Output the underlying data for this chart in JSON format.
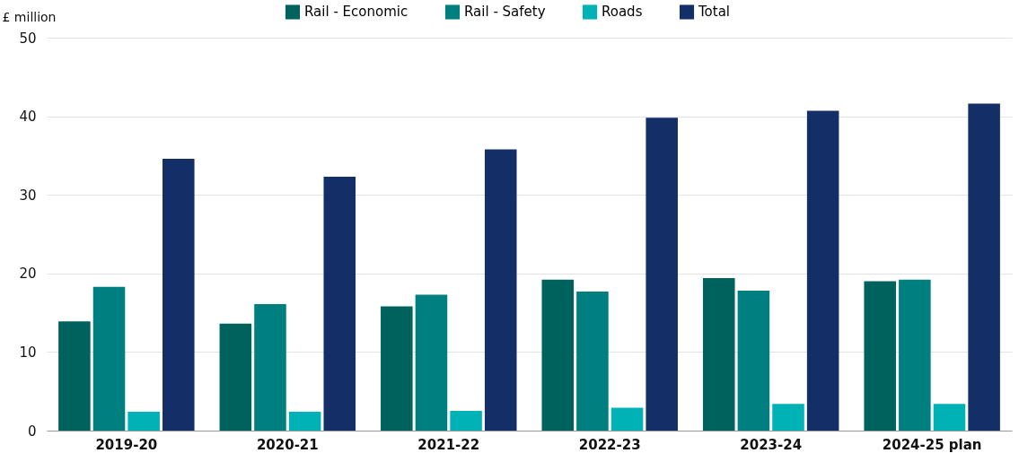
{
  "chart_data": {
    "type": "bar",
    "ylabel": "£ million",
    "categories": [
      "2019-20",
      "2020-21",
      "2021-22",
      "2022-23",
      "2023-24",
      "2024-25 plan"
    ],
    "series": [
      {
        "name": "Rail - Economic",
        "color": "#00625c",
        "values": [
          13.9,
          13.6,
          15.8,
          19.2,
          19.4,
          19.0
        ]
      },
      {
        "name": "Rail - Safety",
        "color": "#007f80",
        "values": [
          18.3,
          16.1,
          17.3,
          17.7,
          17.8,
          19.2
        ]
      },
      {
        "name": "Roads",
        "color": "#00b2b5",
        "values": [
          2.4,
          2.4,
          2.5,
          2.9,
          3.4,
          3.4
        ]
      },
      {
        "name": "Total",
        "color": "#142e68",
        "values": [
          34.6,
          32.3,
          35.8,
          39.8,
          40.7,
          41.6
        ]
      }
    ],
    "ylim": [
      0,
      50
    ],
    "yticks": [
      0,
      10,
      20,
      30,
      40,
      50
    ],
    "grid": "y",
    "legend": "top"
  }
}
